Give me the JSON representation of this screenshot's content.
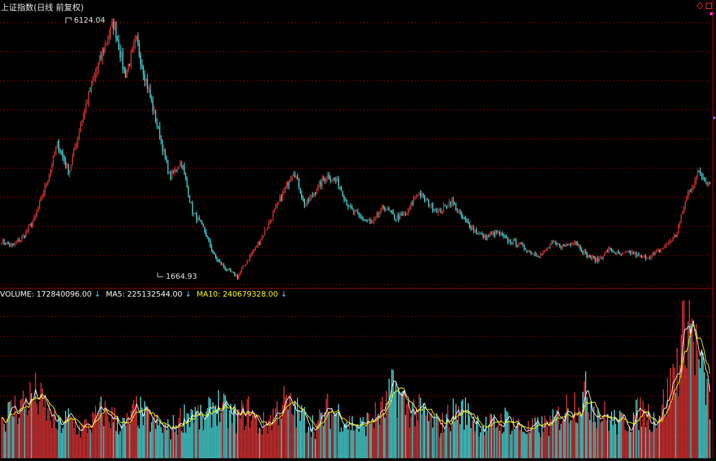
{
  "header": {
    "title": "上证指数(日线 前复权)"
  },
  "volume_header": {
    "volume_label": "VOLUME: 172840096.00",
    "ma5_label": "MA5: 225132544.00",
    "ma10_label": "MA10: 240679328.00",
    "arrow": "↓"
  },
  "annotations": {
    "high": "6124.04",
    "low": "1664.93"
  },
  "colors": {
    "background": "#000000",
    "up": "#ff3b3b",
    "down": "#54ffff",
    "grid": "#8b0000",
    "ma5": "#ffffff",
    "ma10": "#ffff00",
    "axis": "#b00000"
  },
  "chart_data": [
    {
      "type": "candlestick",
      "title": "上证指数(日线 前复权)",
      "ylim": [
        1500,
        6300
      ],
      "close_path": [
        2300,
        2200,
        2380,
        2700,
        3300,
        4000,
        3500,
        4300,
        5000,
        5600,
        6124.04,
        5200,
        5800,
        5000,
        4200,
        3400,
        3700,
        2800,
        2500,
        2000,
        1800,
        1664.93,
        2000,
        2300,
        2700,
        3100,
        3550,
        2900,
        3200,
        3450,
        3300,
        2850,
        2700,
        2600,
        2900,
        2700,
        2750,
        3150,
        2950,
        2800,
        3000,
        2700,
        2500,
        2350,
        2450,
        2300,
        2250,
        2100,
        2050,
        2250,
        2200,
        2300,
        2050,
        1950,
        2150,
        2050,
        2100,
        2000,
        2050,
        2200,
        2400,
        3100,
        3500,
        3300
      ],
      "high_label": "6124.04",
      "low_label": "1664.93",
      "grid": true
    },
    {
      "type": "bar",
      "title": "VOLUME",
      "series": [
        {
          "name": "VOLUME",
          "value": 172840096.0
        },
        {
          "name": "MA5",
          "value": 225132544.0
        },
        {
          "name": "MA10",
          "value": 240679328.0
        }
      ],
      "volume_level": [
        0.25,
        0.3,
        0.35,
        0.4,
        0.3,
        0.2,
        0.25,
        0.18,
        0.22,
        0.3,
        0.25,
        0.2,
        0.3,
        0.25,
        0.2,
        0.18,
        0.25,
        0.3,
        0.22,
        0.35,
        0.28,
        0.25,
        0.3,
        0.2,
        0.25,
        0.35,
        0.3,
        0.25,
        0.2,
        0.3,
        0.28,
        0.22,
        0.2,
        0.25,
        0.3,
        0.45,
        0.32,
        0.3,
        0.25,
        0.2,
        0.28,
        0.3,
        0.25,
        0.2,
        0.22,
        0.25,
        0.2,
        0.18,
        0.2,
        0.22,
        0.3,
        0.35,
        0.4,
        0.3,
        0.25,
        0.22,
        0.25,
        0.3,
        0.25,
        0.35,
        0.55,
        0.95,
        0.6,
        0.35
      ],
      "grid": true
    }
  ]
}
